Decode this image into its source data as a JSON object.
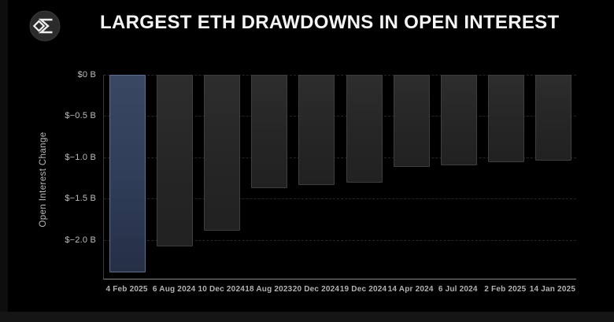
{
  "header": {
    "title": "LARGEST ETH DRAWDOWNS IN OPEN INTEREST",
    "logo": "sigma-diamond-logo"
  },
  "colors": {
    "background": "#000000",
    "title_text": "#f4f4f4",
    "highlight_bar_fill": "#32405b",
    "highlight_bar_border": "#5d6e93",
    "bar_fill": "#272727",
    "bar_border": "#3e3e3e",
    "bottom_axis_line": "#888888",
    "left_axis_line": "#3c3c3c",
    "grid_line": "#262626",
    "tick_text": "#bdbdbd",
    "x_label_text": "#b3b3b3",
    "y_label_text": "#b9b9b9"
  },
  "chart_data": {
    "type": "bar",
    "title": "LARGEST ETH DRAWDOWNS IN OPEN INTEREST",
    "xlabel": "",
    "ylabel": "Open Interest Change",
    "unit": "billion USD",
    "categories": [
      "4 Feb 2025",
      "6 Aug 2024",
      "10 Dec 2024",
      "18 Aug 2023",
      "20 Dec 2024",
      "19 Dec 2024",
      "14 Apr 2024",
      "6 Jul 2024",
      "2 Feb 2025",
      "14 Jan 2025"
    ],
    "values": [
      -2.39,
      -2.08,
      -1.89,
      -1.37,
      -1.34,
      -1.31,
      -1.12,
      -1.1,
      -1.06,
      -1.04
    ],
    "highlight_index": 0,
    "ylim": [
      -2.48,
      0
    ],
    "yticks": [
      {
        "value": 0,
        "label": "$0 B"
      },
      {
        "value": -0.5,
        "label": "$−0.5 B"
      },
      {
        "value": -1.0,
        "label": "$−1.0 B"
      },
      {
        "value": -1.5,
        "label": "$−1.5 B"
      },
      {
        "value": -2.0,
        "label": "$−2.0 B"
      }
    ],
    "grid": "horizontal-dashed",
    "legend": null
  }
}
